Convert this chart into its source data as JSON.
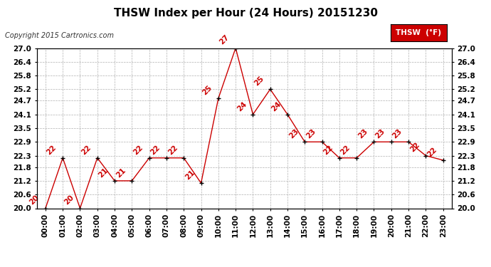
{
  "title": "THSW Index per Hour (24 Hours) 20151230",
  "copyright": "Copyright 2015 Cartronics.com",
  "legend_label": "THSW  (°F)",
  "hours": [
    "00:00",
    "01:00",
    "02:00",
    "03:00",
    "04:00",
    "05:00",
    "06:00",
    "07:00",
    "08:00",
    "09:00",
    "10:00",
    "11:00",
    "12:00",
    "13:00",
    "14:00",
    "15:00",
    "16:00",
    "17:00",
    "18:00",
    "19:00",
    "20:00",
    "21:00",
    "22:00",
    "23:00"
  ],
  "values": [
    20.0,
    22.2,
    20.0,
    22.2,
    21.2,
    21.2,
    22.2,
    22.2,
    22.2,
    21.1,
    24.8,
    27.0,
    24.1,
    25.2,
    24.1,
    22.9,
    22.9,
    22.2,
    22.2,
    22.9,
    22.9,
    22.9,
    22.3,
    22.1
  ],
  "value_labels": [
    "20",
    "22",
    "20",
    "22",
    "21",
    "21",
    "22",
    "22",
    "22",
    "21",
    "25",
    "27",
    "24",
    "25",
    "24",
    "23",
    "23",
    "22",
    "22",
    "23",
    "23",
    "23",
    "22",
    "22"
  ],
  "ylim_min": 20.0,
  "ylim_max": 27.0,
  "yticks": [
    20.0,
    20.6,
    21.2,
    21.8,
    22.3,
    22.9,
    23.5,
    24.1,
    24.7,
    25.2,
    25.8,
    26.4,
    27.0
  ],
  "line_color": "#cc0000",
  "marker_color": "#000000",
  "bg_color": "#ffffff",
  "grid_color": "#b0b0b0",
  "title_fontsize": 11,
  "tick_fontsize": 7.5,
  "annot_fontsize": 7.5,
  "copyright_fontsize": 7,
  "legend_bg": "#cc0000",
  "legend_text_color": "#ffffff",
  "legend_fontsize": 7.5
}
